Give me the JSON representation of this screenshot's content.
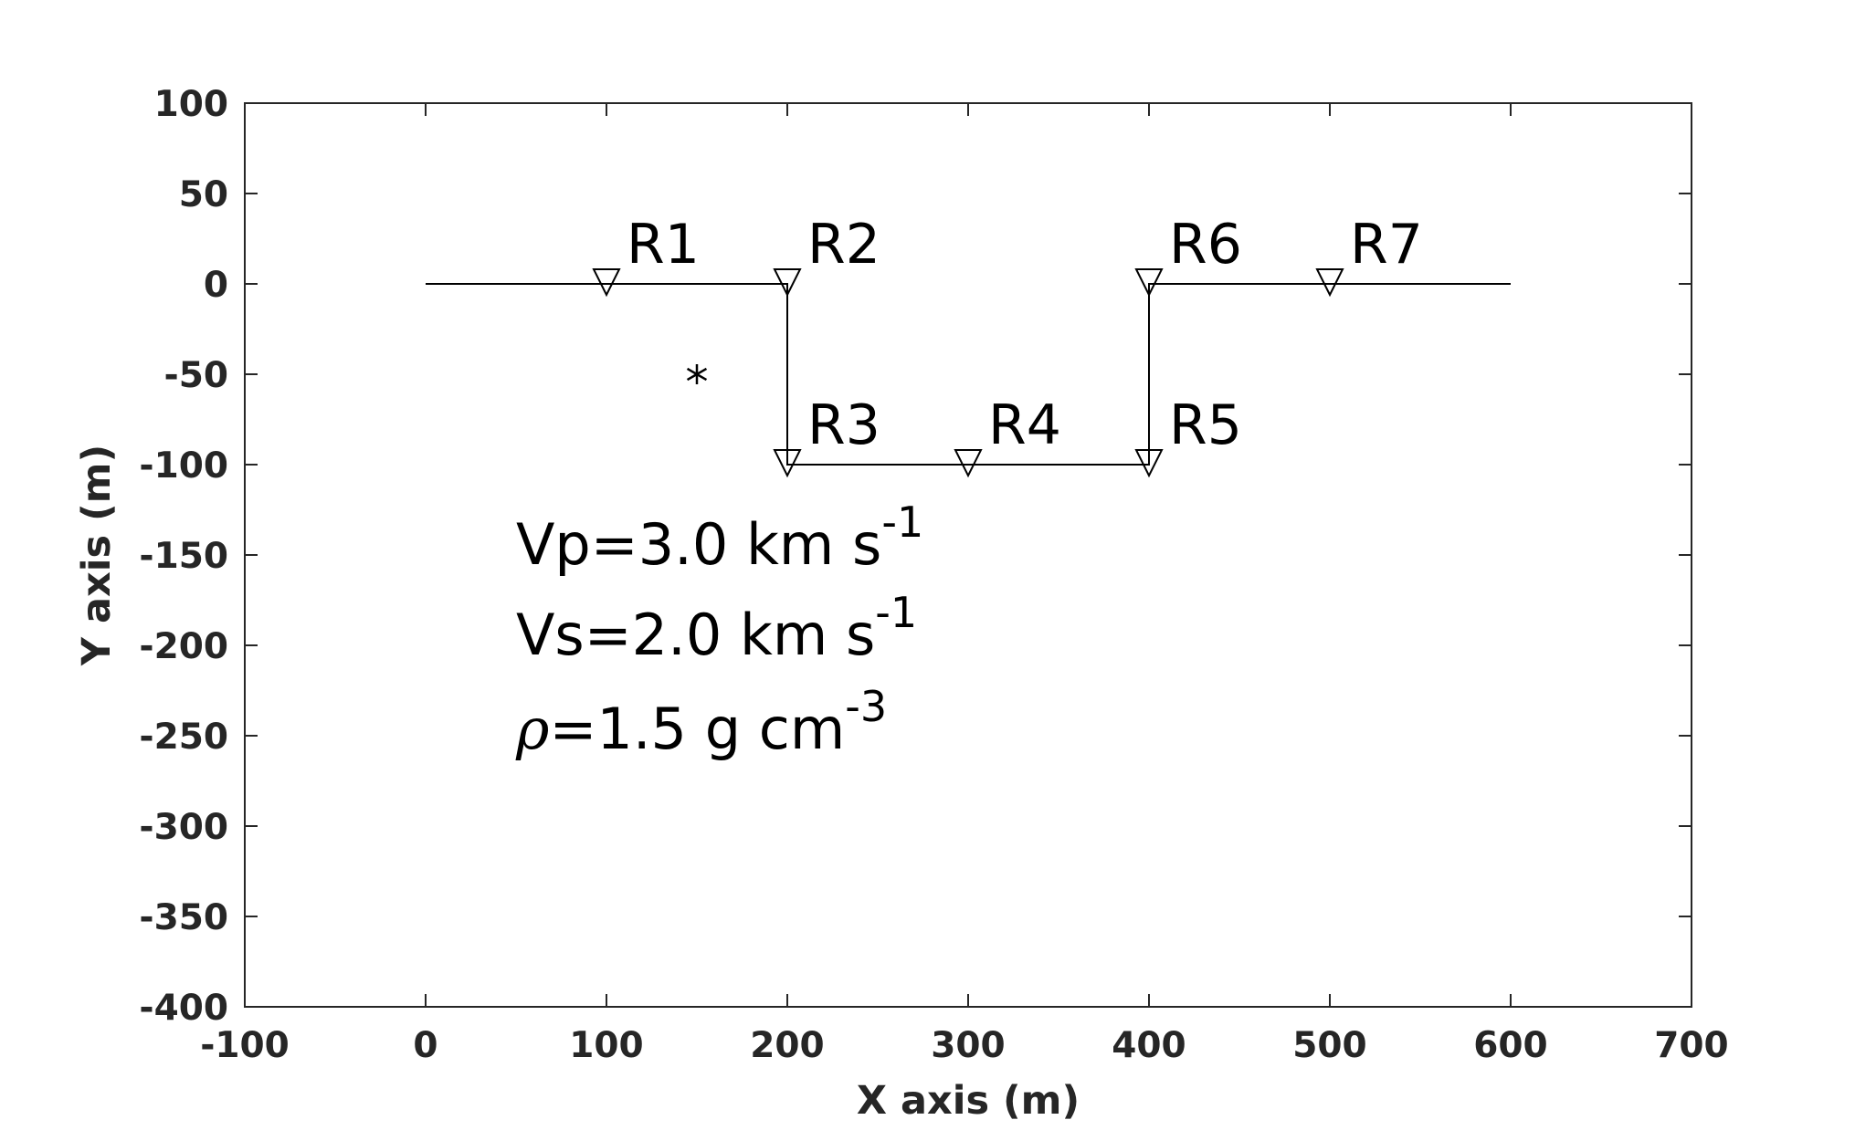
{
  "chart_data": {
    "type": "line",
    "xlabel": "X axis (m)",
    "ylabel": "Y axis (m)",
    "xlim": [
      -100,
      700
    ],
    "ylim": [
      -400,
      100
    ],
    "xticks": [
      -100,
      0,
      100,
      200,
      300,
      400,
      500,
      600,
      700
    ],
    "yticks": [
      -400,
      -350,
      -300,
      -250,
      -200,
      -150,
      -100,
      -50,
      0,
      50,
      100
    ],
    "grid": false,
    "surface": {
      "x": [
        0,
        200,
        200,
        400,
        400,
        600
      ],
      "y": [
        0,
        0,
        -100,
        -100,
        0,
        0
      ]
    },
    "receivers": [
      {
        "label": "R1",
        "x": 100,
        "y": 0
      },
      {
        "label": "R2",
        "x": 200,
        "y": 0
      },
      {
        "label": "R3",
        "x": 200,
        "y": -100
      },
      {
        "label": "R4",
        "x": 300,
        "y": -100
      },
      {
        "label": "R5",
        "x": 400,
        "y": -100
      },
      {
        "label": "R6",
        "x": 400,
        "y": 0
      },
      {
        "label": "R7",
        "x": 500,
        "y": 0
      }
    ],
    "source": {
      "x": 150,
      "y": -50,
      "marker": "asterisk"
    },
    "annotations": [
      {
        "text": "Vp=3.0 km s",
        "sup": "-1",
        "x": 50,
        "y": -155
      },
      {
        "text": "Vs=2.0 km s",
        "sup": "-1",
        "x": 50,
        "y": -205
      },
      {
        "symbol": "ρ",
        "text": "=1.5 g cm",
        "sup": "-3",
        "x": 50,
        "y": -257
      }
    ],
    "colors": {
      "axes": "#262626",
      "lines": "#000000",
      "background": "#ffffff"
    }
  }
}
